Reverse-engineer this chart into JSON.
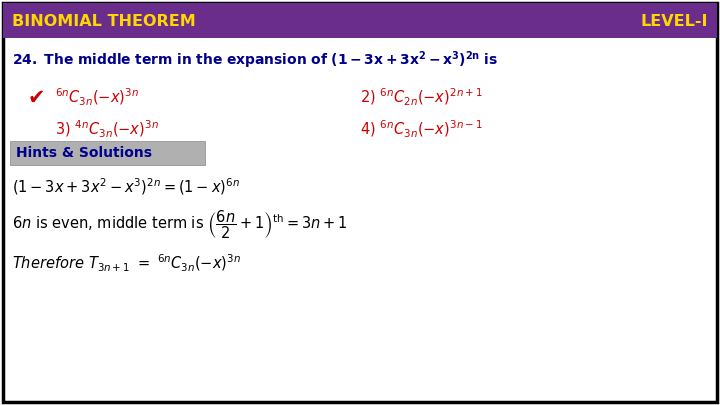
{
  "bg_color": "#ffffff",
  "border_color": "#000000",
  "header_bg": "#6B2D8B",
  "header_text_left": "BINOMIAL THEOREM",
  "header_text_right": "LEVEL-I",
  "header_text_color": "#FFD700",
  "question_color": "#00008B",
  "option_color": "#CC0000",
  "hint_box_color": "#B0B0B0",
  "hint_text_color": "#00008B",
  "solution_color": "#000000",
  "checkmark_color": "#CC0000"
}
